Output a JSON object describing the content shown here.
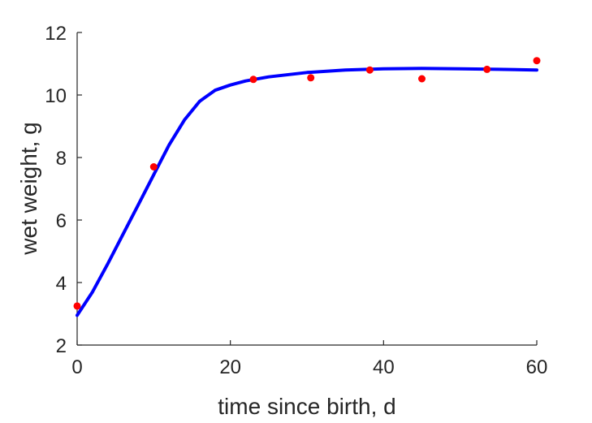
{
  "chart_data": {
    "type": "line",
    "xlabel": "time since birth, d",
    "ylabel": "wet weight, g",
    "xlim": [
      0,
      60
    ],
    "ylim": [
      2,
      12
    ],
    "xticks": [
      0,
      20,
      40,
      60
    ],
    "yticks": [
      2,
      4,
      6,
      8,
      10,
      12
    ],
    "grid": false,
    "series": [
      {
        "style": "line",
        "color": "#0000ff",
        "x": [
          0,
          2,
          4,
          6,
          8,
          10,
          12,
          14,
          16,
          18,
          20,
          22,
          25,
          30,
          35,
          40,
          45,
          50,
          55,
          60
        ],
        "y": [
          2.95,
          3.7,
          4.6,
          5.55,
          6.5,
          7.45,
          8.4,
          9.2,
          9.8,
          10.15,
          10.32,
          10.45,
          10.58,
          10.72,
          10.8,
          10.84,
          10.85,
          10.84,
          10.82,
          10.8
        ]
      },
      {
        "style": "scatter",
        "color": "#ff0000",
        "x": [
          0,
          10,
          23,
          30.5,
          38.2,
          45,
          53.5,
          60
        ],
        "y": [
          3.25,
          7.7,
          10.5,
          10.55,
          10.8,
          10.52,
          10.82,
          11.1
        ]
      }
    ]
  }
}
